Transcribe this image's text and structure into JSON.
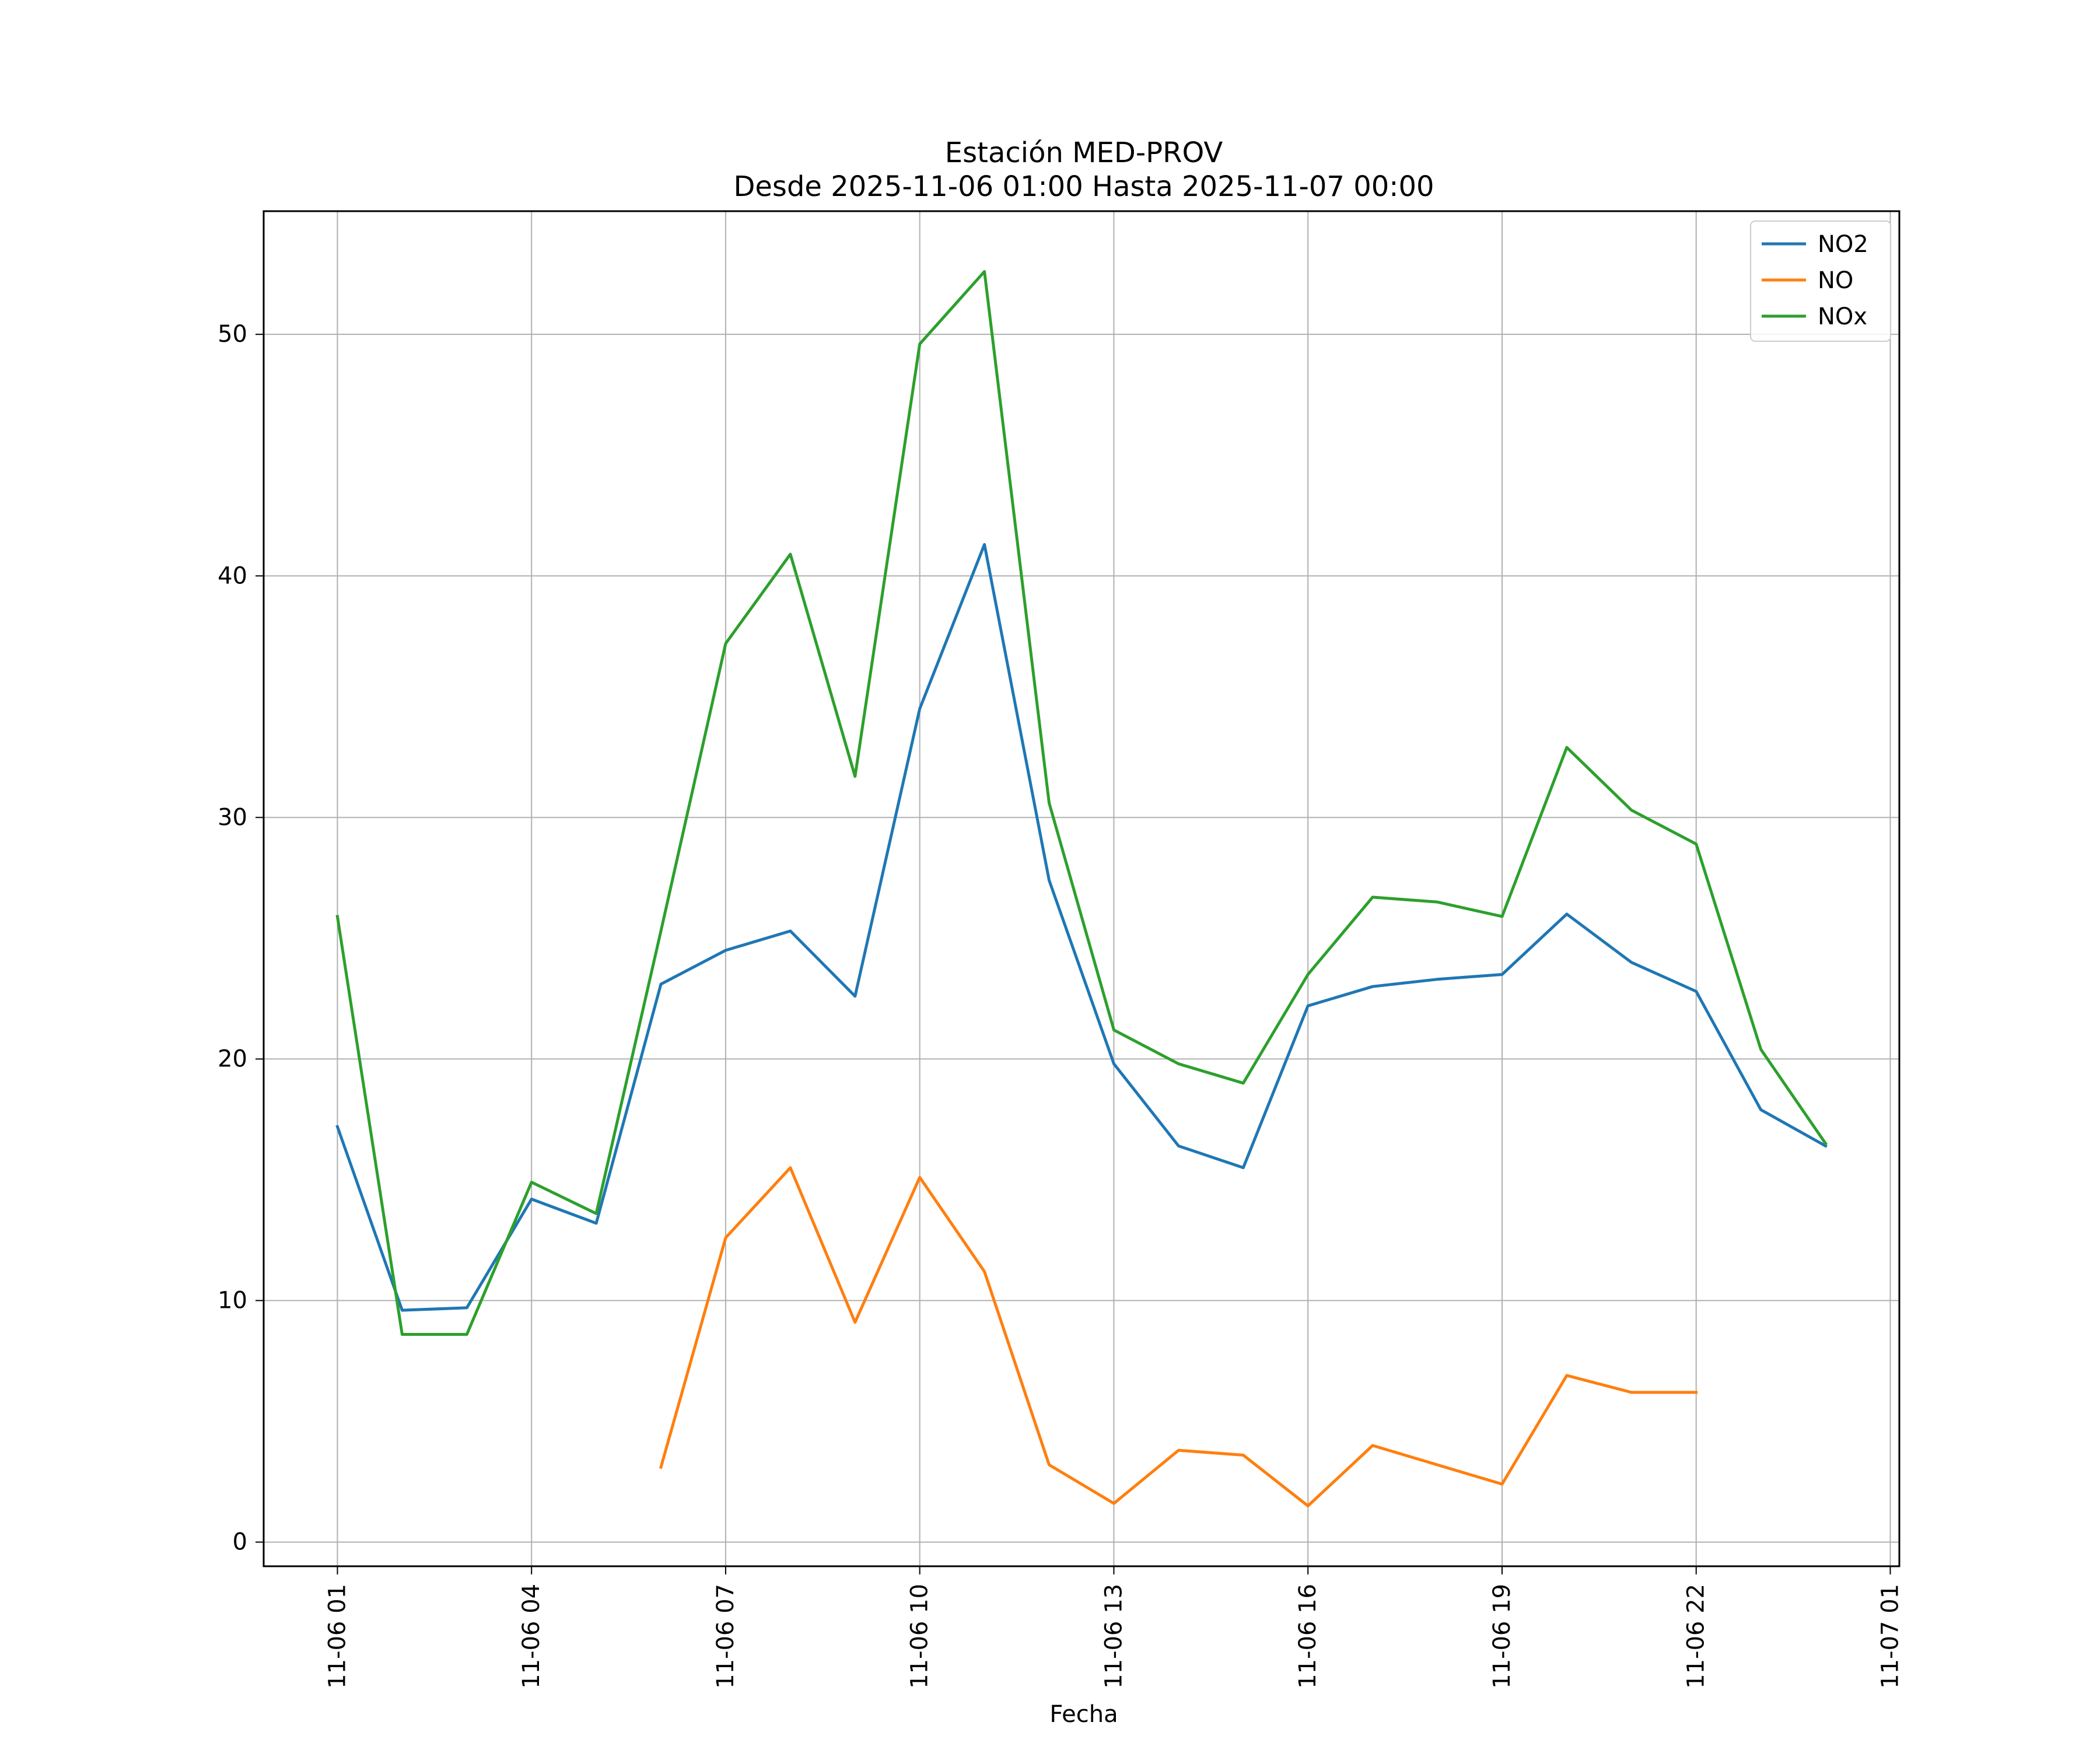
{
  "chart_data": {
    "type": "line",
    "title": "Estación MED-PROV",
    "subtitle": "Desde 2025-11-06 01:00 Hasta 2025-11-07 00:00",
    "xlabel": "Fecha",
    "ylabel": "",
    "grid": true,
    "legend_position": "top-right",
    "x_ticks": [
      "11-06 01",
      "11-06 04",
      "11-06 07",
      "11-06 10",
      "11-06 13",
      "11-06 16",
      "11-06 19",
      "11-06 22",
      "11-07 01"
    ],
    "x_tick_hours": [
      1,
      4,
      7,
      10,
      13,
      16,
      19,
      22,
      25
    ],
    "y_ticks": [
      0,
      10,
      20,
      30,
      40,
      50
    ],
    "xlim": [
      -0.14,
      25.14
    ],
    "ylim": [
      -1,
      55.1
    ],
    "x_hours": [
      1,
      2,
      3,
      4,
      5,
      6,
      7,
      8,
      9,
      10,
      11,
      12,
      13,
      14,
      15,
      16,
      17,
      18,
      19,
      20,
      21,
      22,
      23,
      24
    ],
    "series": [
      {
        "name": "NO2",
        "color": "#1f77b4",
        "values": [
          17.2,
          9.6,
          9.7,
          14.2,
          13.2,
          23.1,
          24.5,
          25.3,
          22.6,
          34.5,
          41.3,
          27.4,
          19.8,
          16.4,
          15.5,
          22.2,
          23.0,
          23.3,
          23.5,
          26.0,
          24.0,
          22.8,
          17.9,
          16.4
        ]
      },
      {
        "name": "NO",
        "color": "#ff7f0e",
        "values": [
          null,
          null,
          null,
          null,
          null,
          3.1,
          12.6,
          15.5,
          9.1,
          15.1,
          11.2,
          3.2,
          1.6,
          3.8,
          3.6,
          1.5,
          4.0,
          3.2,
          2.4,
          6.9,
          6.2,
          6.2,
          null,
          null
        ]
      },
      {
        "name": "NOx",
        "color": "#2ca02c",
        "values": [
          25.9,
          8.6,
          8.6,
          14.9,
          13.6,
          25.3,
          37.2,
          40.9,
          31.7,
          49.6,
          52.6,
          30.6,
          21.2,
          19.8,
          19.0,
          23.5,
          26.7,
          26.5,
          25.9,
          32.9,
          30.3,
          28.9,
          20.4,
          16.5
        ]
      }
    ]
  }
}
